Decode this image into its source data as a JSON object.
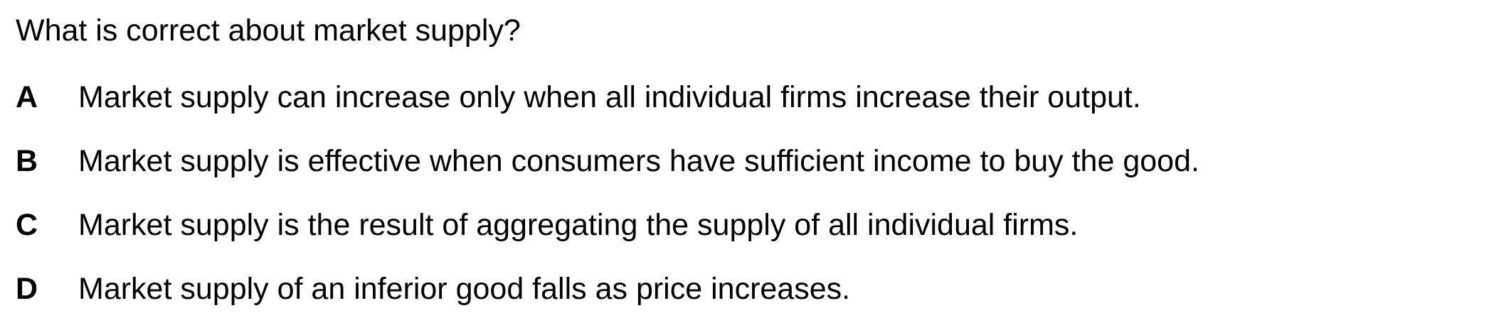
{
  "question": {
    "text": "What is correct about market supply?"
  },
  "options": [
    {
      "letter": "A",
      "text": "Market supply can increase only when all individual firms increase their output."
    },
    {
      "letter": "B",
      "text": "Market supply is effective when consumers have sufficient income to buy the good."
    },
    {
      "letter": "C",
      "text": "Market supply is the result of aggregating the supply of all individual firms."
    },
    {
      "letter": "D",
      "text": "Market supply of an inferior good falls as price increases."
    }
  ]
}
